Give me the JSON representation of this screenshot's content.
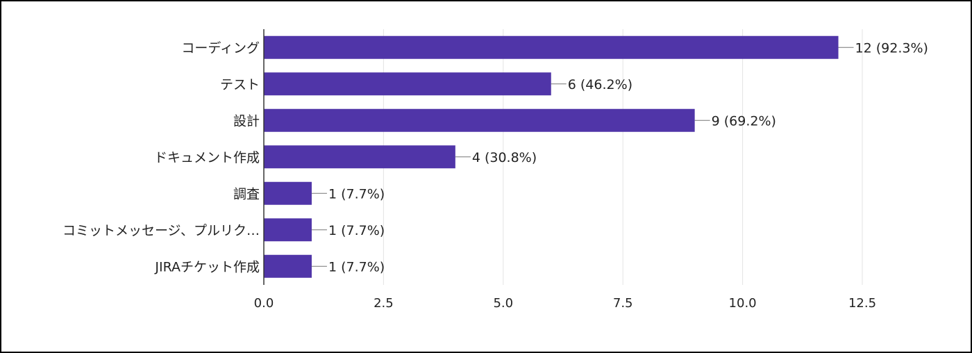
{
  "chart_data": {
    "type": "bar",
    "orientation": "horizontal",
    "title": "",
    "xlabel": "",
    "ylabel": "",
    "categories": [
      "コーディング",
      "テスト",
      "設計",
      "ドキュメント作成",
      "調査",
      "コミットメッセージ、プルリク…",
      "JIRAチケット作成"
    ],
    "values": [
      12,
      6,
      9,
      4,
      1,
      1,
      1
    ],
    "data_labels": [
      "12 (92.3%)",
      "6 (46.2%)",
      "9 (69.2%)",
      "4 (30.8%)",
      "1 (7.7%)",
      "1 (7.7%)",
      "1 (7.7%)"
    ],
    "xlim": [
      0,
      12.5
    ],
    "xticks": [
      0,
      2.5,
      5,
      7.5,
      10,
      12.5
    ],
    "xtick_labels": [
      "0.0",
      "2.5",
      "5.0",
      "7.5",
      "10.0",
      "12.5"
    ],
    "grid": true,
    "legend": "none",
    "bar_color": "#5035a8",
    "grid_color": "#e3e3e3",
    "axis_color": "#333333"
  }
}
